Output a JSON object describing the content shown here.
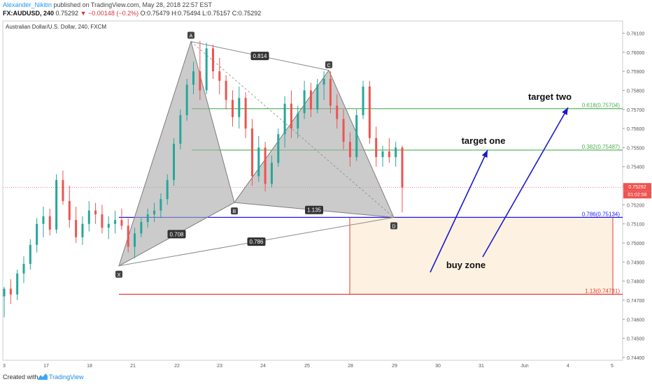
{
  "header": {
    "user": "Alexander_Nikitin",
    "published": " published on TradingView.com, May 28, 2018 22:57 EST",
    "symbol": "FX:AUDUSD, 240",
    "price": "0.75292",
    "arrow": "▼",
    "change": "−0.00148 (−0.2%)",
    "ohlc": "O:0.75479 H:0.75494 L:0.75157 C:0.75292"
  },
  "footer": {
    "created": "Created with",
    "brand": "TradingView"
  },
  "chart_data": {
    "type": "candlestick",
    "title": "Australian Dollar/U.S. Dollar, 240, FXCM",
    "ylim": [
      0.74385,
      0.76164
    ],
    "y_ticks": [
      "0.76100",
      "0.76000",
      "0.75900",
      "0.75800",
      "0.75700",
      "0.75600",
      "0.75500",
      "0.75400",
      "0.75300",
      "0.75200",
      "0.75100",
      "0.75000",
      "0.74900",
      "0.74800",
      "0.74700",
      "0.74600",
      "0.74500",
      "0.74400"
    ],
    "x_ticks": [
      "3",
      "17",
      "18",
      "21",
      "22",
      "23",
      "24",
      "25",
      "28",
      "29",
      "30",
      "31",
      "Jun",
      "4",
      "5"
    ],
    "candles": [
      [
        0.7472,
        0.7477,
        0.7461,
        0.7476
      ],
      [
        0.7476,
        0.7481,
        0.7468,
        0.7473
      ],
      [
        0.7473,
        0.7486,
        0.747,
        0.7484
      ],
      [
        0.7484,
        0.7493,
        0.7479,
        0.7489
      ],
      [
        0.7489,
        0.7502,
        0.7486,
        0.7499
      ],
      [
        0.7499,
        0.7513,
        0.7495,
        0.751
      ],
      [
        0.751,
        0.7519,
        0.7503,
        0.7514
      ],
      [
        0.7514,
        0.7518,
        0.7504,
        0.7507
      ],
      [
        0.7507,
        0.7536,
        0.7505,
        0.7533
      ],
      [
        0.7533,
        0.7538,
        0.752,
        0.7522
      ],
      [
        0.7522,
        0.753,
        0.7508,
        0.7512
      ],
      [
        0.7512,
        0.7519,
        0.75,
        0.7503
      ],
      [
        0.7503,
        0.7514,
        0.7499,
        0.751
      ],
      [
        0.751,
        0.7522,
        0.7506,
        0.7517
      ],
      [
        0.7517,
        0.7521,
        0.751,
        0.7515
      ],
      [
        0.7515,
        0.752,
        0.7505,
        0.7508
      ],
      [
        0.7508,
        0.7514,
        0.7502,
        0.751
      ],
      [
        0.751,
        0.7517,
        0.7505,
        0.7512
      ],
      [
        0.7512,
        0.7518,
        0.7507,
        0.7509
      ],
      [
        0.7509,
        0.7513,
        0.7495,
        0.7498
      ],
      [
        0.7498,
        0.7508,
        0.7492,
        0.7505
      ],
      [
        0.7505,
        0.7513,
        0.7503,
        0.7511
      ],
      [
        0.7511,
        0.7518,
        0.7508,
        0.7515
      ],
      [
        0.7515,
        0.7521,
        0.7511,
        0.7517
      ],
      [
        0.7517,
        0.7526,
        0.7513,
        0.7523
      ],
      [
        0.7523,
        0.7536,
        0.752,
        0.7533
      ],
      [
        0.7533,
        0.7555,
        0.753,
        0.7552
      ],
      [
        0.7552,
        0.757,
        0.7549,
        0.7567
      ],
      [
        0.7567,
        0.7586,
        0.7564,
        0.7583
      ],
      [
        0.7583,
        0.7595,
        0.7578,
        0.759
      ],
      [
        0.759,
        0.7606,
        0.7575,
        0.758
      ],
      [
        0.758,
        0.7605,
        0.7578,
        0.7602
      ],
      [
        0.7602,
        0.7604,
        0.7586,
        0.759
      ],
      [
        0.759,
        0.7597,
        0.7578,
        0.7585
      ],
      [
        0.7585,
        0.7588,
        0.757,
        0.7575
      ],
      [
        0.7575,
        0.758,
        0.7561,
        0.7566
      ],
      [
        0.7566,
        0.7582,
        0.756,
        0.7576
      ],
      [
        0.7576,
        0.7579,
        0.7555,
        0.756
      ],
      [
        0.756,
        0.7565,
        0.753,
        0.7535
      ],
      [
        0.7535,
        0.7556,
        0.7532,
        0.755
      ],
      [
        0.755,
        0.7553,
        0.7527,
        0.7531
      ],
      [
        0.7531,
        0.7546,
        0.7529,
        0.7542
      ],
      [
        0.7542,
        0.756,
        0.754,
        0.7557
      ],
      [
        0.7557,
        0.7577,
        0.755,
        0.7573
      ],
      [
        0.7573,
        0.758,
        0.7555,
        0.756
      ],
      [
        0.756,
        0.7572,
        0.7555,
        0.7568
      ],
      [
        0.7568,
        0.7585,
        0.7565,
        0.758
      ],
      [
        0.758,
        0.7584,
        0.7566,
        0.757
      ],
      [
        0.757,
        0.7586,
        0.7568,
        0.7583
      ],
      [
        0.7583,
        0.759,
        0.7575,
        0.7586
      ],
      [
        0.7586,
        0.759,
        0.7568,
        0.7572
      ],
      [
        0.7572,
        0.7578,
        0.756,
        0.7565
      ],
      [
        0.7565,
        0.757,
        0.7549,
        0.7553
      ],
      [
        0.7553,
        0.7558,
        0.754,
        0.7545
      ],
      [
        0.7545,
        0.757,
        0.7543,
        0.7567
      ],
      [
        0.7567,
        0.7585,
        0.7565,
        0.7582
      ],
      [
        0.7582,
        0.7585,
        0.7552,
        0.7555
      ],
      [
        0.7555,
        0.7561,
        0.754,
        0.7545
      ],
      [
        0.7545,
        0.7551,
        0.754,
        0.7548
      ],
      [
        0.7548,
        0.7555,
        0.7542,
        0.7545
      ],
      [
        0.7545,
        0.7553,
        0.754,
        0.755
      ],
      [
        0.755,
        0.7551,
        0.7516,
        0.7529
      ]
    ],
    "pattern": {
      "points": [
        {
          "label": "X",
          "x": "May 21",
          "y": 0.7488
        },
        {
          "label": "A",
          "x": "May 22",
          "y": 0.76056
        },
        {
          "label": "B",
          "x": "May 23",
          "y": 0.75212
        },
        {
          "label": "C",
          "x": "May 25",
          "y": 0.75905
        },
        {
          "label": "D",
          "x": "May 29",
          "y": 0.75134
        }
      ],
      "ratios": [
        "0.708",
        "0.814",
        "1.135",
        "0.786"
      ]
    },
    "levels": [
      {
        "label": "0.618(0.75704)",
        "value": 0.75704,
        "color": "#4caf50"
      },
      {
        "label": "0.382(0.75487)",
        "value": 0.75487,
        "color": "#4caf50"
      },
      {
        "label": "0.786(0.75134)",
        "value": 0.75134,
        "color": "#1a1aff"
      },
      {
        "label": "1.13(0.74731)",
        "value": 0.74731,
        "color": "#e53935"
      }
    ],
    "annotations": [
      "target two",
      "target one",
      "buy zone"
    ],
    "last_price": "0.75292",
    "countdown": "01:02:58",
    "colors": {
      "up": "#26a69a",
      "down": "#ef5350",
      "pattern_fill": "#a8a8a8",
      "zone_fill": "#fdf2e2",
      "arrow": "#1a1acd"
    }
  }
}
